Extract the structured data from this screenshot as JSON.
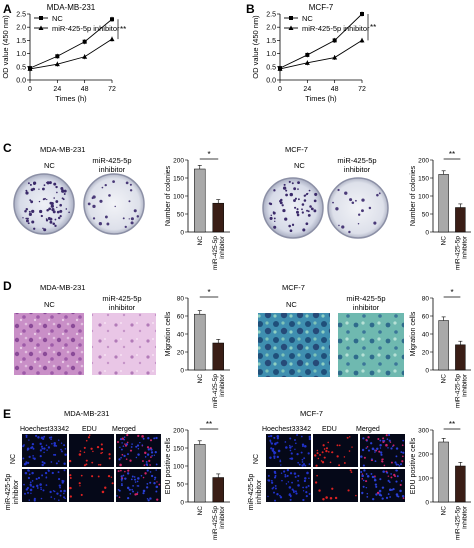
{
  "panel_labels": {
    "a": "A",
    "b": "B",
    "c": "C",
    "d": "D",
    "e": "E"
  },
  "cells": {
    "mda": "MDA-MB-231",
    "mcf": "MCF-7"
  },
  "groups": {
    "nc": "NC",
    "inh": "miR-425-5p inhibitor",
    "inh_l1": "miR-425-5p",
    "inh_l2": "inhibitor"
  },
  "sig": {
    "double": "**",
    "single": "*"
  },
  "stains": {
    "h": "Hoechest33342",
    "e": "EDU",
    "m": "Merged"
  },
  "colors": {
    "nc_bar": "#a9a9a9",
    "inh_bar": "#3a1e16",
    "line": "#000000"
  },
  "chart_data": [
    {
      "id": "A",
      "type": "line",
      "title": "MDA-MB-231",
      "xlabel": "Times (h)",
      "ylabel": "OD value (450 nm)",
      "x": [
        0,
        24,
        48,
        72
      ],
      "ylim": [
        0.0,
        2.5
      ],
      "yticks": [
        0.0,
        0.5,
        1.0,
        1.5,
        2.0,
        2.5
      ],
      "series": [
        {
          "name": "NC",
          "values": [
            0.45,
            0.9,
            1.45,
            2.3
          ]
        },
        {
          "name": "miR-425-5p inhibitor",
          "values": [
            0.42,
            0.6,
            0.88,
            1.55
          ]
        }
      ],
      "annotation": "**"
    },
    {
      "id": "B",
      "type": "line",
      "title": "MCF-7",
      "xlabel": "Times (h)",
      "ylabel": "OD value (450 nm)",
      "x": [
        0,
        24,
        48,
        72
      ],
      "ylim": [
        0.0,
        2.5
      ],
      "yticks": [
        0.0,
        0.5,
        1.0,
        1.5,
        2.0,
        2.5
      ],
      "series": [
        {
          "name": "NC",
          "values": [
            0.45,
            0.95,
            1.5,
            2.5
          ]
        },
        {
          "name": "miR-425-5p inhibitor",
          "values": [
            0.42,
            0.65,
            0.85,
            1.5
          ]
        }
      ],
      "annotation": "**"
    },
    {
      "id": "C1",
      "type": "bar",
      "ylabel": "Number of colonies",
      "ylim": [
        0,
        200
      ],
      "yticks": [
        0,
        50,
        100,
        150,
        200
      ],
      "categories": [
        "NC",
        "miR-425-5p inhibitor"
      ],
      "values": [
        175,
        80
      ],
      "annotation": "*"
    },
    {
      "id": "C2",
      "type": "bar",
      "ylabel": "Number of colonies",
      "ylim": [
        0,
        200
      ],
      "yticks": [
        0,
        50,
        100,
        150,
        200
      ],
      "categories": [
        "NC",
        "miR-425-5p inhibitor"
      ],
      "values": [
        160,
        68
      ],
      "annotation": "**"
    },
    {
      "id": "D1",
      "type": "bar",
      "ylabel": "Migration cells",
      "ylim": [
        0,
        80
      ],
      "yticks": [
        0,
        20,
        40,
        60,
        80
      ],
      "categories": [
        "NC",
        "miR-425-5p inhibitor"
      ],
      "values": [
        62,
        30
      ],
      "annotation": "*"
    },
    {
      "id": "D2",
      "type": "bar",
      "ylabel": "Migration cells",
      "ylim": [
        0,
        80
      ],
      "yticks": [
        0,
        20,
        40,
        60,
        80
      ],
      "categories": [
        "NC",
        "miR-425-5p inhibitor"
      ],
      "values": [
        55,
        28
      ],
      "annotation": "*"
    },
    {
      "id": "E1",
      "type": "bar",
      "ylabel": "EDU positive cells",
      "ylim": [
        0,
        200
      ],
      "yticks": [
        0,
        50,
        100,
        150,
        200
      ],
      "categories": [
        "NC",
        "miR-425-5p inhibitor"
      ],
      "values": [
        160,
        68
      ],
      "annotation": "**"
    },
    {
      "id": "E2",
      "type": "bar",
      "ylabel": "EDU positive cells",
      "ylim": [
        0,
        300
      ],
      "yticks": [
        0,
        100,
        200,
        300
      ],
      "categories": [
        "NC",
        "miR-425-5p inhibitor"
      ],
      "values": [
        250,
        150
      ],
      "annotation": "**"
    }
  ]
}
